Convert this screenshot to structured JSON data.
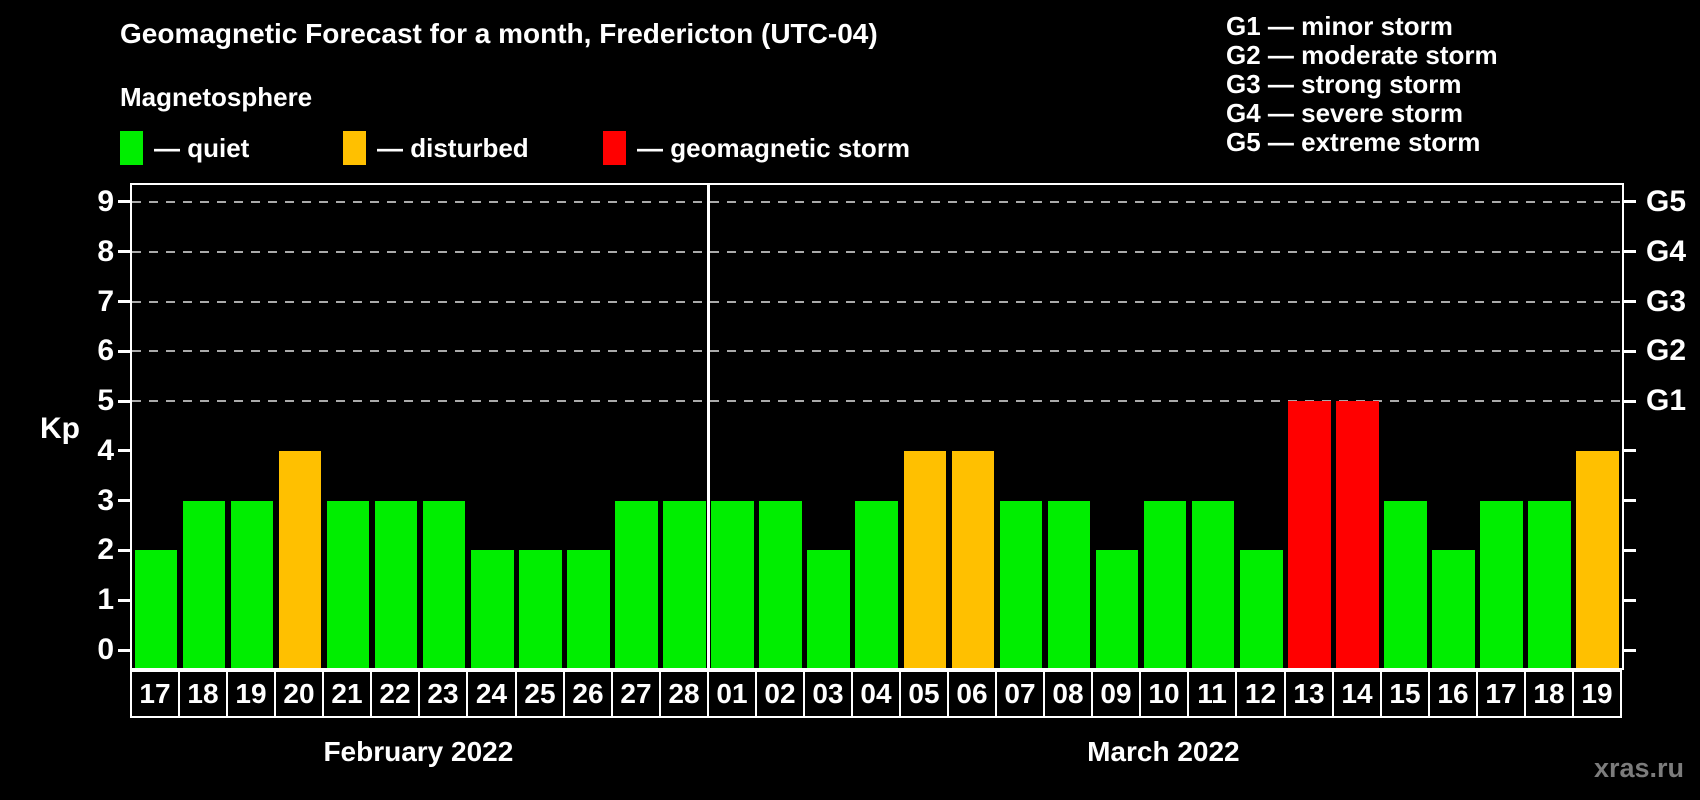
{
  "title": "Geomagnetic Forecast for a month, Fredericton (UTC-04)",
  "magnetosphere": {
    "title": "Magnetosphere",
    "items": [
      {
        "key": "quiet",
        "label": "— quiet",
        "color": "#00ee00"
      },
      {
        "key": "disturbed",
        "label": "— disturbed",
        "color": "#ffc000"
      },
      {
        "key": "storm",
        "label": "— geomagnetic storm",
        "color": "#ff0000"
      }
    ]
  },
  "storm_scale_legend": [
    "G1 — minor storm",
    "G2 — moderate storm",
    "G3 — strong storm",
    "G4 — severe storm",
    "G5 — extreme storm"
  ],
  "watermark": "xras.ru",
  "chart_data": {
    "type": "bar",
    "ylabel": "Kp",
    "ylim": [
      0,
      9
    ],
    "yticks": [
      0,
      1,
      2,
      3,
      4,
      5,
      6,
      7,
      8,
      9
    ],
    "right_axis": [
      {
        "kp": 5,
        "label": "G1"
      },
      {
        "kp": 6,
        "label": "G2"
      },
      {
        "kp": 7,
        "label": "G3"
      },
      {
        "kp": 8,
        "label": "G4"
      },
      {
        "kp": 9,
        "label": "G5"
      }
    ],
    "gridlines_at_kp": [
      5,
      6,
      7,
      8,
      9
    ],
    "grid_style": "dashed",
    "background": "#000000",
    "months": [
      {
        "label": "February 2022",
        "days": [
          {
            "day": "17",
            "kp": 2,
            "status": "quiet"
          },
          {
            "day": "18",
            "kp": 3,
            "status": "quiet"
          },
          {
            "day": "19",
            "kp": 3,
            "status": "quiet"
          },
          {
            "day": "20",
            "kp": 4,
            "status": "disturbed"
          },
          {
            "day": "21",
            "kp": 3,
            "status": "quiet"
          },
          {
            "day": "22",
            "kp": 3,
            "status": "quiet"
          },
          {
            "day": "23",
            "kp": 3,
            "status": "quiet"
          },
          {
            "day": "24",
            "kp": 2,
            "status": "quiet"
          },
          {
            "day": "25",
            "kp": 2,
            "status": "quiet"
          },
          {
            "day": "26",
            "kp": 2,
            "status": "quiet"
          },
          {
            "day": "27",
            "kp": 3,
            "status": "quiet"
          },
          {
            "day": "28",
            "kp": 3,
            "status": "quiet"
          }
        ]
      },
      {
        "label": "March 2022",
        "days": [
          {
            "day": "01",
            "kp": 3,
            "status": "quiet"
          },
          {
            "day": "02",
            "kp": 3,
            "status": "quiet"
          },
          {
            "day": "03",
            "kp": 2,
            "status": "quiet"
          },
          {
            "day": "04",
            "kp": 3,
            "status": "quiet"
          },
          {
            "day": "05",
            "kp": 4,
            "status": "disturbed"
          },
          {
            "day": "06",
            "kp": 4,
            "status": "disturbed"
          },
          {
            "day": "07",
            "kp": 3,
            "status": "quiet"
          },
          {
            "day": "08",
            "kp": 3,
            "status": "quiet"
          },
          {
            "day": "09",
            "kp": 2,
            "status": "quiet"
          },
          {
            "day": "10",
            "kp": 3,
            "status": "quiet"
          },
          {
            "day": "11",
            "kp": 3,
            "status": "quiet"
          },
          {
            "day": "12",
            "kp": 2,
            "status": "quiet"
          },
          {
            "day": "13",
            "kp": 5,
            "status": "storm"
          },
          {
            "day": "14",
            "kp": 5,
            "status": "storm"
          },
          {
            "day": "15",
            "kp": 3,
            "status": "quiet"
          },
          {
            "day": "16",
            "kp": 2,
            "status": "quiet"
          },
          {
            "day": "17",
            "kp": 3,
            "status": "quiet"
          },
          {
            "day": "18",
            "kp": 3,
            "status": "quiet"
          },
          {
            "day": "19",
            "kp": 4,
            "status": "disturbed"
          }
        ]
      }
    ]
  }
}
